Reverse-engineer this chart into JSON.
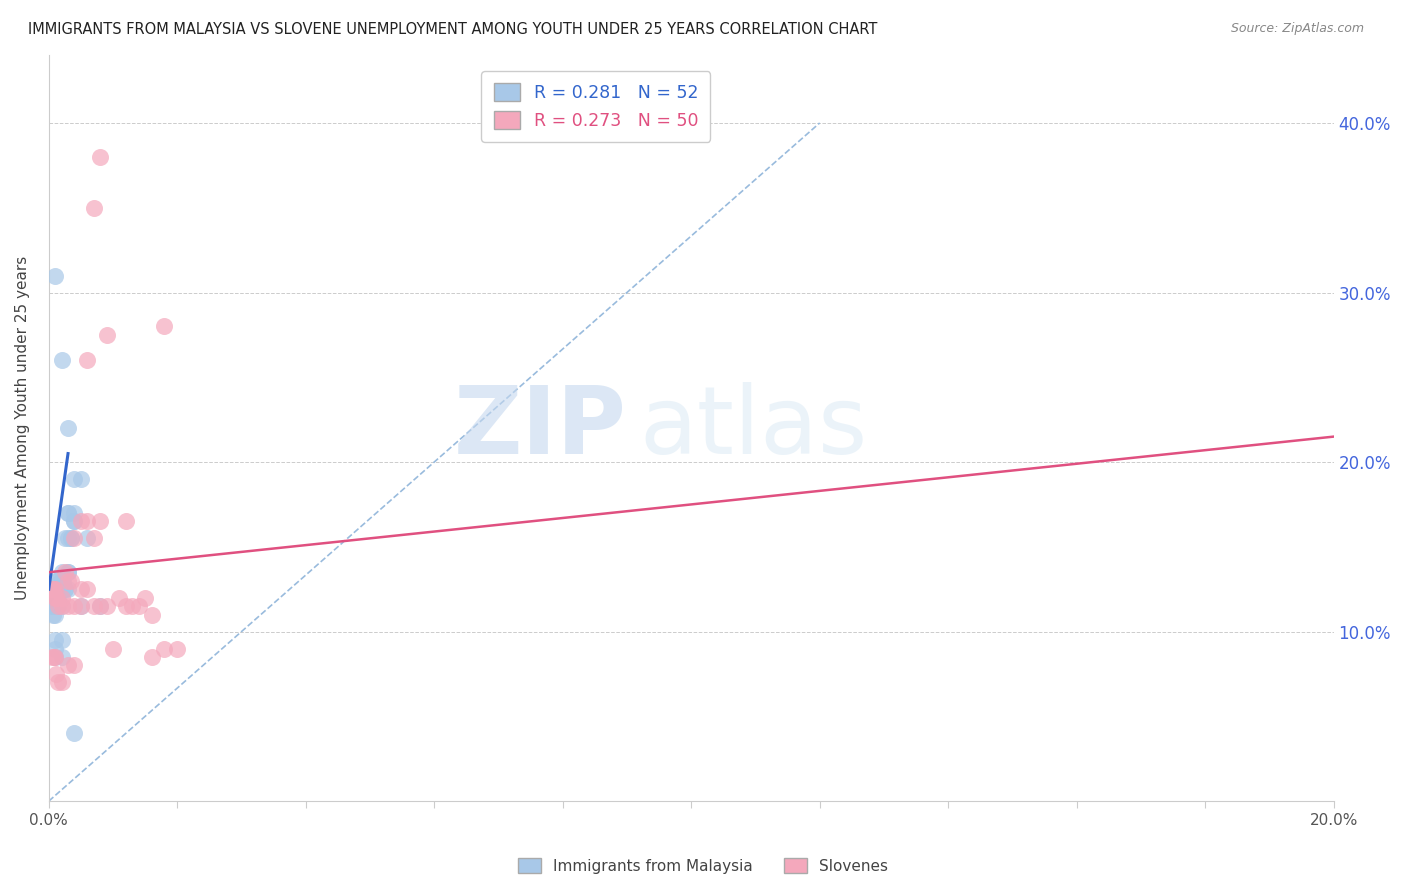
{
  "title": "IMMIGRANTS FROM MALAYSIA VS SLOVENE UNEMPLOYMENT AMONG YOUTH UNDER 25 YEARS CORRELATION CHART",
  "source": "Source: ZipAtlas.com",
  "ylabel": "Unemployment Among Youth under 25 years",
  "legend_blue_r": "R = 0.281",
  "legend_blue_n": "N = 52",
  "legend_pink_r": "R = 0.273",
  "legend_pink_n": "N = 50",
  "blue_scatter_x": [
    0.0005,
    0.0008,
    0.001,
    0.001,
    0.001,
    0.0012,
    0.0013,
    0.0015,
    0.0015,
    0.002,
    0.002,
    0.002,
    0.002,
    0.0022,
    0.0025,
    0.0025,
    0.003,
    0.003,
    0.003,
    0.003,
    0.0035,
    0.004,
    0.004,
    0.004,
    0.0005,
    0.0006,
    0.0007,
    0.0008,
    0.0009,
    0.001,
    0.001,
    0.001,
    0.001,
    0.0012,
    0.0015,
    0.0015,
    0.002,
    0.002,
    0.002,
    0.0025,
    0.003,
    0.003,
    0.0035,
    0.004,
    0.005,
    0.005,
    0.006,
    0.008,
    0.001,
    0.002,
    0.003,
    0.004
  ],
  "blue_scatter_y": [
    0.125,
    0.125,
    0.125,
    0.13,
    0.125,
    0.125,
    0.13,
    0.125,
    0.128,
    0.125,
    0.125,
    0.135,
    0.13,
    0.13,
    0.125,
    0.155,
    0.135,
    0.155,
    0.17,
    0.17,
    0.155,
    0.165,
    0.17,
    0.19,
    0.115,
    0.11,
    0.115,
    0.115,
    0.12,
    0.11,
    0.095,
    0.09,
    0.085,
    0.115,
    0.115,
    0.12,
    0.095,
    0.085,
    0.115,
    0.125,
    0.125,
    0.135,
    0.155,
    0.165,
    0.115,
    0.19,
    0.155,
    0.115,
    0.31,
    0.26,
    0.22,
    0.04
  ],
  "pink_scatter_x": [
    0.0005,
    0.0006,
    0.0008,
    0.001,
    0.001,
    0.0012,
    0.0013,
    0.0015,
    0.002,
    0.002,
    0.0025,
    0.003,
    0.003,
    0.0035,
    0.004,
    0.004,
    0.005,
    0.005,
    0.006,
    0.006,
    0.007,
    0.007,
    0.008,
    0.008,
    0.009,
    0.01,
    0.011,
    0.012,
    0.013,
    0.014,
    0.015,
    0.016,
    0.018,
    0.02,
    0.0005,
    0.0008,
    0.001,
    0.0012,
    0.0015,
    0.002,
    0.003,
    0.004,
    0.005,
    0.006,
    0.007,
    0.008,
    0.009,
    0.012,
    0.016,
    0.018
  ],
  "pink_scatter_y": [
    0.125,
    0.125,
    0.125,
    0.12,
    0.125,
    0.12,
    0.12,
    0.115,
    0.115,
    0.12,
    0.135,
    0.115,
    0.13,
    0.13,
    0.115,
    0.155,
    0.125,
    0.115,
    0.125,
    0.165,
    0.115,
    0.155,
    0.115,
    0.165,
    0.115,
    0.09,
    0.12,
    0.115,
    0.115,
    0.115,
    0.12,
    0.11,
    0.09,
    0.09,
    0.085,
    0.085,
    0.085,
    0.075,
    0.07,
    0.07,
    0.08,
    0.08,
    0.165,
    0.26,
    0.35,
    0.38,
    0.275,
    0.165,
    0.085,
    0.28
  ],
  "blue_line_x": [
    0.0,
    0.003
  ],
  "blue_line_y": [
    0.125,
    0.205
  ],
  "pink_line_x": [
    0.0,
    0.2
  ],
  "pink_line_y": [
    0.135,
    0.215
  ],
  "dash_line_x": [
    0.0,
    0.12
  ],
  "dash_line_y": [
    0.0,
    0.4
  ],
  "watermark_zip": "ZIP",
  "watermark_atlas": "atlas",
  "blue_color": "#a8c8e8",
  "pink_color": "#f4a8bc",
  "blue_line_color": "#3366cc",
  "pink_line_color": "#e05080",
  "dash_color": "#99bbdd",
  "title_color": "#222222",
  "right_axis_color": "#4466dd",
  "background_color": "#ffffff",
  "xlim": [
    0.0,
    0.2
  ],
  "ylim": [
    0.0,
    0.44
  ],
  "xtick_positions": [
    0.0,
    0.02,
    0.04,
    0.06,
    0.08,
    0.1,
    0.12,
    0.14,
    0.16,
    0.18,
    0.2
  ],
  "ytick_positions": [
    0.0,
    0.1,
    0.2,
    0.3,
    0.4
  ],
  "right_yticklabels": [
    "",
    "10.0%",
    "20.0%",
    "30.0%",
    "40.0%"
  ]
}
